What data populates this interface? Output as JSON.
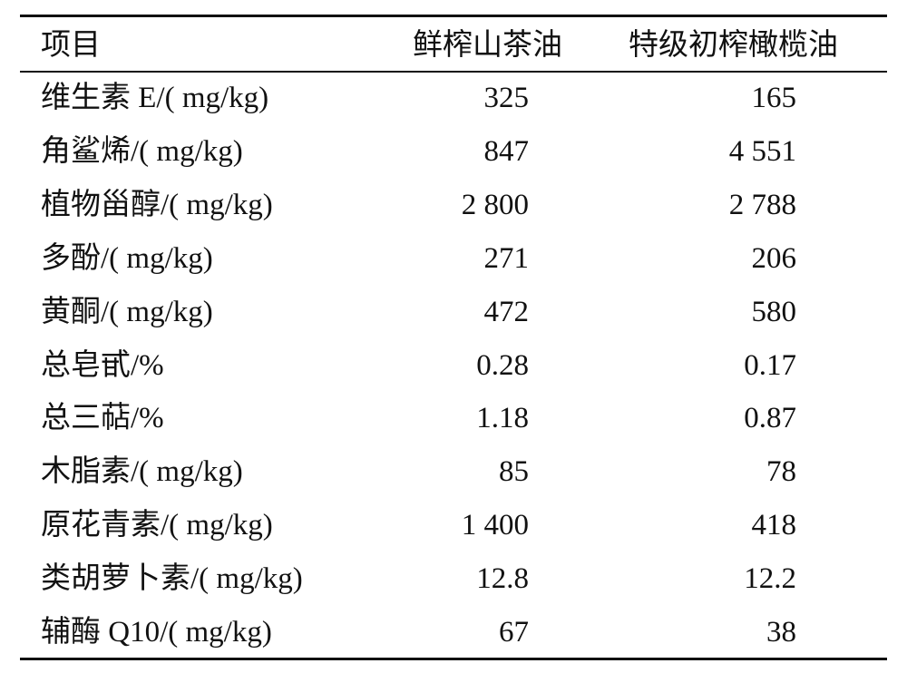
{
  "table": {
    "header": [
      "项目",
      "鲜榨山茶油",
      "特级初榨橄榄油"
    ],
    "rows": [
      [
        "维生素 E/( mg/kg)",
        "325",
        "165"
      ],
      [
        "角鲨烯/( mg/kg)",
        "847",
        "4 551"
      ],
      [
        "植物甾醇/( mg/kg)",
        "2 800",
        "2 788"
      ],
      [
        "多酚/( mg/kg)",
        "271",
        "206"
      ],
      [
        "黄酮/( mg/kg)",
        "472",
        "580"
      ],
      [
        "总皂甙/%",
        "0.28",
        "0.17"
      ],
      [
        "总三萜/%",
        "1.18",
        "0.87"
      ],
      [
        "木脂素/( mg/kg)",
        "85",
        "78"
      ],
      [
        "原花青素/( mg/kg)",
        "1 400",
        "418"
      ],
      [
        "类胡萝卜素/( mg/kg)",
        "12.8",
        "12.2"
      ],
      [
        "辅酶 Q10/( mg/kg)",
        "67",
        "38"
      ]
    ]
  }
}
